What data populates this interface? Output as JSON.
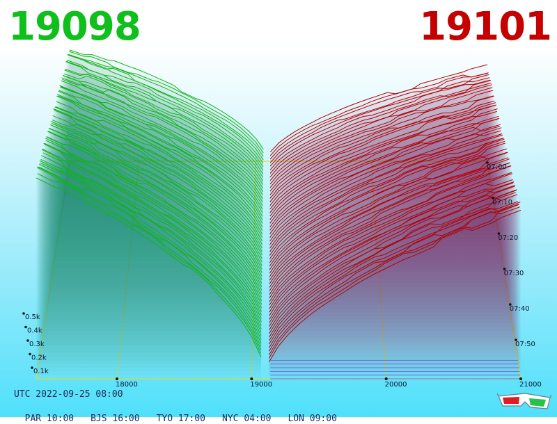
{
  "header": {
    "bid_price": "19098",
    "ask_price": "19101",
    "bid_color": "#0fbf1c",
    "ask_color": "#c40000"
  },
  "footer": {
    "utc_label": "UTC 2022-09-25 08:00",
    "zones": [
      "PAR 10:00",
      "BJS 16:00",
      "TYO 17:00",
      "NYC 04:00",
      "LON 09:00"
    ],
    "glasses_icon": "3d-glasses-icon"
  },
  "chart_data": {
    "type": "area",
    "subtype": "3d-order-book-depth",
    "x_axis": {
      "ticks": [
        18000,
        19000,
        20000,
        21000
      ],
      "tick_labels": [
        "18000",
        "19000",
        "20000",
        "21000"
      ],
      "range": [
        17400,
        21000
      ]
    },
    "z_axis": {
      "tick_labels": [
        "0.1k",
        "0.2k",
        "0.3k",
        "0.4k",
        "0.5k"
      ],
      "ticks": [
        100,
        200,
        300,
        400,
        500
      ]
    },
    "time_axis": {
      "tick_labels": [
        "07:00",
        "07:10",
        "07:20",
        "07:30",
        "07:40",
        "07:50"
      ]
    },
    "series": [
      {
        "side": "bid",
        "color": "#11b515",
        "mid_price": 19098,
        "peak_depth_at_range_edge": 850,
        "snapshots": 60
      },
      {
        "side": "ask",
        "color": "#b30000",
        "mid_price": 19101,
        "peak_depth_at_range_edge": 700,
        "snapshots": 60
      }
    ],
    "grid": true,
    "legend": "none"
  }
}
